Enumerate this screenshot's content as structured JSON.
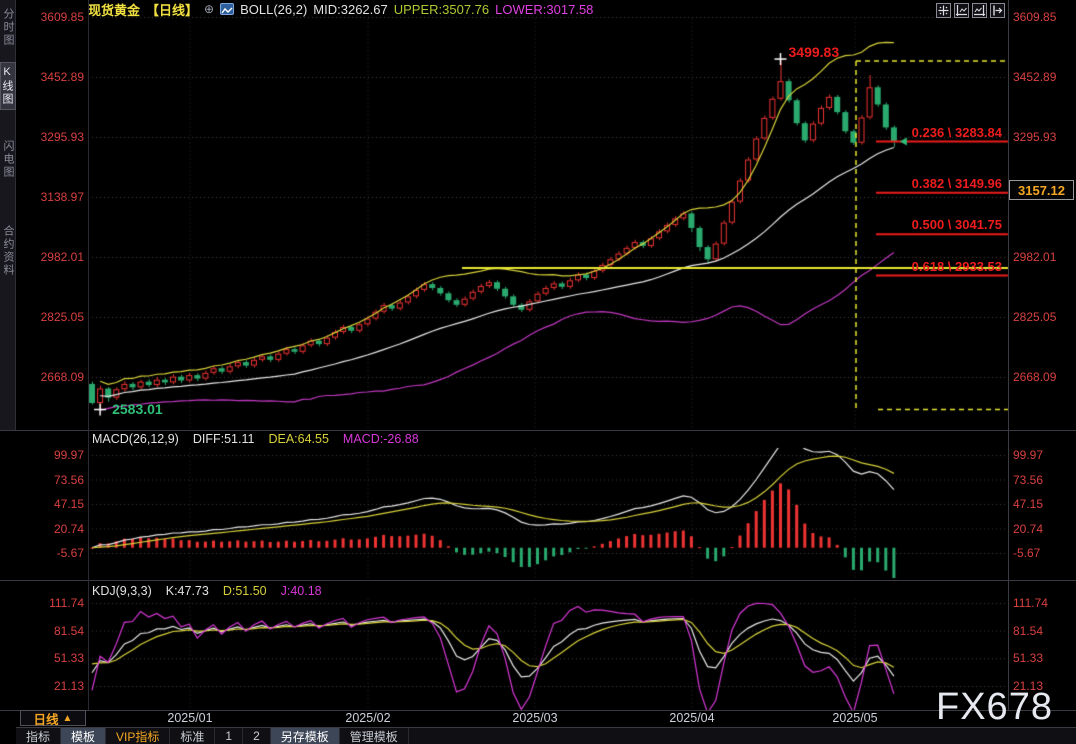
{
  "colors": {
    "up": "#ee3333",
    "down": "#2aaa6e",
    "boll_mid": "#e8e8e8",
    "boll_upper": "#d8d23a",
    "boll_lower": "#c238c2",
    "grid": "#3b3b3b",
    "axis_text": "#d84040",
    "fib": "#ee1c1c",
    "yellow_line": "#e8e832",
    "projection": "#e8e832",
    "macd_diff": "#e8e8e8",
    "macd_dea": "#d8d23a",
    "hist_pos": "#ee3333",
    "hist_neg": "#2aaa6e",
    "kdj_k": "#e8e8e8",
    "kdj_d": "#d8d23a",
    "kdj_j": "#d838d8",
    "cross": "#ffffff",
    "marker": "#2fbf77"
  },
  "sidebar": {
    "items": [
      {
        "name": "time-chart",
        "label": "分时图",
        "active": false
      },
      {
        "name": "kline-chart",
        "label": "K线图",
        "active": true
      },
      {
        "name": "flash-chart",
        "label": "闪电图",
        "active": false
      },
      {
        "name": "contract-info",
        "label": "合约资料",
        "active": false
      }
    ]
  },
  "header": {
    "symbol": "现货黄金",
    "period": "【日线】",
    "expand": "⊕",
    "indicator": "BOLL(26,2)",
    "mid": "MID:3262.67",
    "upper": "UPPER:3507.76",
    "lower": "LOWER:3017.58",
    "toolbar_icons": [
      "crosshair-tool",
      "scale-left",
      "scale-right",
      "collapse-panel"
    ]
  },
  "main_chart": {
    "y_axis_left": [
      3609.85,
      3452.89,
      3295.93,
      3138.97,
      2982.01,
      2825.05,
      2668.09
    ],
    "y_axis_right": [
      3609.85,
      3452.89,
      3295.93,
      2982.01,
      2825.05,
      2668.09
    ],
    "price_box": {
      "value": "3157.12",
      "price": 3157.12
    },
    "high_annotation": {
      "text": "3499.83",
      "price": 3499.83,
      "candle_index": 85,
      "color": "#ee1c1c"
    },
    "low_annotation": {
      "text": "2583.01",
      "price": 2583.01,
      "candle_index": 1,
      "color": "#2fbf77"
    },
    "fib_levels": [
      {
        "label": "0.236 \\ 3283.84",
        "price": 3283.84
      },
      {
        "label": "0.382 \\ 3149.96",
        "price": 3149.96
      },
      {
        "label": "0.500 \\ 3041.75",
        "price": 3041.75
      },
      {
        "label": "0.618 \\ 2933.53",
        "price": 2933.53
      }
    ],
    "support_line": {
      "price": 2953.2
    },
    "projection": {
      "top_price": 3499.83,
      "bottom_price": 2583.01
    }
  },
  "macd": {
    "title": "MACD(26,12,9)",
    "diff": "DIFF:51.11",
    "dea": "DEA:64.55",
    "macd": "MACD:-26.88",
    "y_axis": [
      99.97,
      73.56,
      47.15,
      20.74,
      -5.67
    ]
  },
  "kdj": {
    "title": "KDJ(9,3,3)",
    "k": "K:47.73",
    "d": "D:51.50",
    "j": "J:40.18",
    "y_axis": [
      111.74,
      81.54,
      51.33,
      21.13
    ]
  },
  "x_axis": {
    "period_label": "日线",
    "period_arrow": "▲",
    "dates": [
      "2025/01",
      "2025/02",
      "2025/03",
      "2025/04",
      "2025/05"
    ]
  },
  "bottom_tabs": [
    {
      "name": "indicator",
      "label": "指标",
      "selected": false,
      "vip": false
    },
    {
      "name": "template",
      "label": "模板",
      "selected": true,
      "vip": false
    },
    {
      "name": "vip-indicator",
      "label": "VIP指标",
      "selected": false,
      "vip": true
    },
    {
      "name": "standard",
      "label": "标准",
      "selected": false,
      "vip": false
    },
    {
      "name": "slot-1",
      "label": "1",
      "selected": false,
      "vip": false
    },
    {
      "name": "slot-2",
      "label": "2",
      "selected": false,
      "vip": false
    },
    {
      "name": "save-as-template",
      "label": "另存模板",
      "selected": true,
      "vip": false
    },
    {
      "name": "manage-template",
      "label": "管理模板",
      "selected": false,
      "vip": false
    }
  ],
  "watermark": {
    "text": "FX678"
  },
  "chart_data": {
    "type": "candlestick",
    "symbol": "现货黄金 日线 (Spot Gold Daily)",
    "x_axis_dates": [
      "2025/01",
      "2025/02",
      "2025/03",
      "2025/04",
      "2025/05"
    ],
    "y_range": [
      2520,
      3620
    ],
    "indicators": {
      "boll": {
        "period": 26,
        "dev": 2,
        "mid": 3262.67,
        "upper": 3507.76,
        "lower": 3017.58
      },
      "macd": {
        "fast": 26,
        "slow": 12,
        "signal": 9,
        "diff": 51.11,
        "dea": 64.55,
        "macd": -26.88,
        "y_range": [
          -32,
          113
        ]
      },
      "kdj": {
        "n": 9,
        "m1": 3,
        "m2": 3,
        "k": 47.73,
        "d": 51.5,
        "j": 40.18,
        "y_range": [
          -9,
          127
        ]
      }
    },
    "candles": [
      [
        2650,
        2656,
        2596,
        2600
      ],
      [
        2600,
        2645,
        2583.01,
        2638
      ],
      [
        2638,
        2642,
        2603,
        2614
      ],
      [
        2614,
        2641,
        2608,
        2636
      ],
      [
        2636,
        2657,
        2630,
        2650
      ],
      [
        2650,
        2655,
        2634,
        2641
      ],
      [
        2641,
        2661,
        2636,
        2656
      ],
      [
        2656,
        2662,
        2641,
        2647
      ],
      [
        2647,
        2668,
        2642,
        2661
      ],
      [
        2661,
        2666,
        2647,
        2654
      ],
      [
        2654,
        2675,
        2649,
        2669
      ],
      [
        2669,
        2674,
        2652,
        2659
      ],
      [
        2659,
        2679,
        2654,
        2673
      ],
      [
        2673,
        2678,
        2657,
        2664
      ],
      [
        2664,
        2685,
        2659,
        2679
      ],
      [
        2679,
        2697,
        2674,
        2691
      ],
      [
        2691,
        2696,
        2676,
        2682
      ],
      [
        2682,
        2702,
        2677,
        2696
      ],
      [
        2696,
        2713,
        2691,
        2707
      ],
      [
        2707,
        2712,
        2692,
        2698
      ],
      [
        2698,
        2719,
        2693,
        2713
      ],
      [
        2713,
        2728,
        2708,
        2722
      ],
      [
        2722,
        2727,
        2707,
        2713
      ],
      [
        2713,
        2735,
        2708,
        2729
      ],
      [
        2729,
        2747,
        2724,
        2741
      ],
      [
        2741,
        2746,
        2728,
        2734
      ],
      [
        2734,
        2757,
        2729,
        2751
      ],
      [
        2751,
        2769,
        2746,
        2763
      ],
      [
        2763,
        2768,
        2748,
        2754
      ],
      [
        2754,
        2777,
        2749,
        2771
      ],
      [
        2771,
        2792,
        2766,
        2786
      ],
      [
        2786,
        2805,
        2781,
        2799
      ],
      [
        2799,
        2804,
        2783,
        2789
      ],
      [
        2789,
        2812,
        2784,
        2806
      ],
      [
        2806,
        2827,
        2801,
        2821
      ],
      [
        2821,
        2845,
        2816,
        2839
      ],
      [
        2839,
        2862,
        2834,
        2856
      ],
      [
        2856,
        2861,
        2841,
        2847
      ],
      [
        2847,
        2869,
        2842,
        2863
      ],
      [
        2863,
        2885,
        2858,
        2879
      ],
      [
        2879,
        2902,
        2874,
        2896
      ],
      [
        2896,
        2917,
        2891,
        2911
      ],
      [
        2911,
        2916,
        2895,
        2901
      ],
      [
        2901,
        2906,
        2881,
        2887
      ],
      [
        2887,
        2892,
        2863,
        2869
      ],
      [
        2869,
        2874,
        2851,
        2857
      ],
      [
        2857,
        2879,
        2852,
        2873
      ],
      [
        2873,
        2897,
        2868,
        2891
      ],
      [
        2891,
        2912,
        2886,
        2906
      ],
      [
        2906,
        2922,
        2901,
        2916
      ],
      [
        2916,
        2921,
        2893,
        2899
      ],
      [
        2899,
        2904,
        2873,
        2879
      ],
      [
        2879,
        2884,
        2851,
        2857
      ],
      [
        2857,
        2862,
        2838,
        2844
      ],
      [
        2844,
        2872,
        2839,
        2866
      ],
      [
        2866,
        2892,
        2861,
        2886
      ],
      [
        2886,
        2907,
        2881,
        2901
      ],
      [
        2901,
        2919,
        2896,
        2913
      ],
      [
        2913,
        2918,
        2898,
        2904
      ],
      [
        2904,
        2927,
        2899,
        2921
      ],
      [
        2921,
        2942,
        2916,
        2936
      ],
      [
        2936,
        2941,
        2921,
        2927
      ],
      [
        2927,
        2952,
        2922,
        2946
      ],
      [
        2946,
        2967,
        2941,
        2961
      ],
      [
        2961,
        2982,
        2956,
        2976
      ],
      [
        2976,
        2997,
        2971,
        2991
      ],
      [
        2991,
        3012,
        2986,
        3006
      ],
      [
        3006,
        3027,
        3001,
        3021
      ],
      [
        3021,
        3026,
        3005,
        3011
      ],
      [
        3011,
        3037,
        3006,
        3031
      ],
      [
        3031,
        3055,
        3026,
        3049
      ],
      [
        3049,
        3072,
        3044,
        3066
      ],
      [
        3066,
        3089,
        3061,
        3083
      ],
      [
        3083,
        3102,
        3078,
        3096
      ],
      [
        3096,
        3101,
        3047,
        3058
      ],
      [
        3058,
        3063,
        2997,
        3008
      ],
      [
        3008,
        3013,
        2965,
        2976
      ],
      [
        2976,
        3023,
        2970,
        3017
      ],
      [
        3017,
        3078,
        3012,
        3072
      ],
      [
        3072,
        3133,
        3067,
        3127
      ],
      [
        3127,
        3188,
        3122,
        3182
      ],
      [
        3182,
        3243,
        3177,
        3237
      ],
      [
        3237,
        3298,
        3232,
        3292
      ],
      [
        3292,
        3352,
        3287,
        3346
      ],
      [
        3346,
        3402,
        3341,
        3396
      ],
      [
        3396,
        3499.83,
        3391,
        3442
      ],
      [
        3442,
        3448,
        3386,
        3392
      ],
      [
        3392,
        3397,
        3326,
        3332
      ],
      [
        3332,
        3337,
        3281,
        3287
      ],
      [
        3287,
        3337,
        3282,
        3331
      ],
      [
        3331,
        3378,
        3326,
        3372
      ],
      [
        3372,
        3407,
        3367,
        3401
      ],
      [
        3401,
        3406,
        3355,
        3361
      ],
      [
        3361,
        3366,
        3305,
        3311
      ],
      [
        3311,
        3316,
        3275,
        3281
      ],
      [
        3281,
        3353,
        3276,
        3347
      ],
      [
        3347,
        3458,
        3342,
        3426
      ],
      [
        3426,
        3431,
        3375,
        3381
      ],
      [
        3381,
        3386,
        3315,
        3321
      ],
      [
        3321,
        3326,
        3270,
        3284
      ]
    ]
  }
}
